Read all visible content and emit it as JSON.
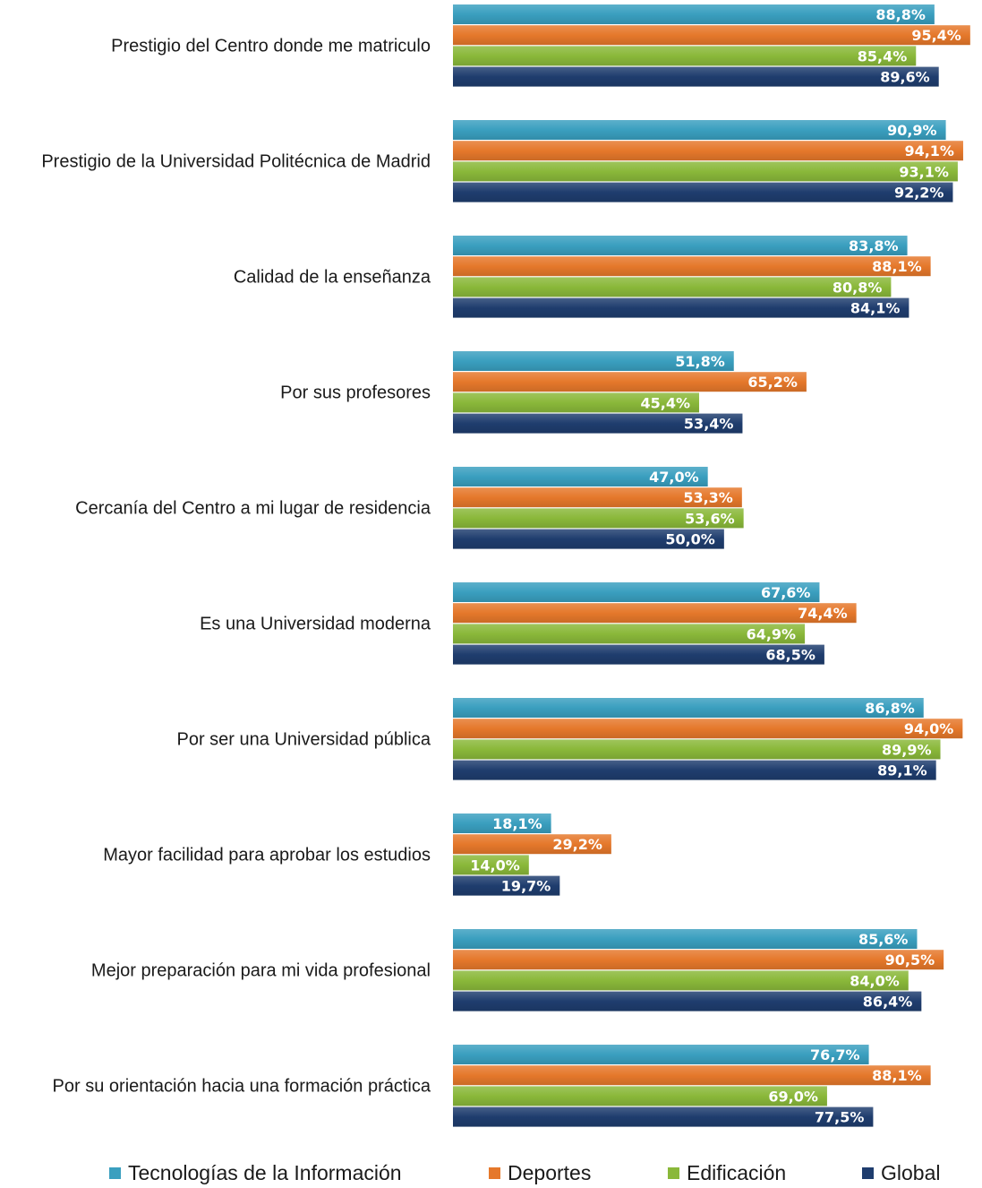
{
  "chart_data": {
    "type": "bar",
    "orientation": "horizontal",
    "title": "",
    "xlabel": "",
    "ylabel": "",
    "xlim": [
      0,
      100
    ],
    "grid": false,
    "legend_position": "bottom",
    "categories": [
      "Prestigio del Centro donde me matriculo",
      "Prestigio de la Universidad Politécnica de Madrid",
      "Calidad de la enseñanza",
      "Por sus profesores",
      "Cercanía del Centro a mi lugar de residencia",
      "Es una Universidad moderna",
      "Por ser una Universidad pública",
      "Mayor facilidad para aprobar los estudios",
      "Mejor preparación para mi vida profesional",
      "Por su orientación hacia una formación práctica"
    ],
    "series": [
      {
        "name": "Tecnologías de la Información",
        "color": "#3a9fbf",
        "values": [
          88.8,
          90.9,
          83.8,
          51.8,
          47.0,
          67.6,
          86.8,
          18.1,
          85.6,
          76.7
        ],
        "labels": [
          "88,8%",
          "90,9%",
          "83,8%",
          "51,8%",
          "47,0%",
          "67,6%",
          "86,8%",
          "18,1%",
          "85,6%",
          "76,7%"
        ]
      },
      {
        "name": "Deportes",
        "color": "#e5782b",
        "values": [
          95.4,
          94.1,
          88.1,
          65.2,
          53.3,
          74.4,
          94.0,
          29.2,
          90.5,
          88.1
        ],
        "labels": [
          "95,4%",
          "94,1%",
          "88,1%",
          "65,2%",
          "53,3%",
          "74,4%",
          "94,0%",
          "29,2%",
          "90,5%",
          "88,1%"
        ]
      },
      {
        "name": "Edificación",
        "color": "#8ab83a",
        "values": [
          85.4,
          93.1,
          80.8,
          45.4,
          53.6,
          64.9,
          89.9,
          14.0,
          84.0,
          69.0
        ],
        "labels": [
          "85,4%",
          "93,1%",
          "80,8%",
          "45,4%",
          "53,6%",
          "64,9%",
          "89,9%",
          "14,0%",
          "84,0%",
          "69,0%"
        ]
      },
      {
        "name": "Global",
        "color": "#1f3d6e",
        "values": [
          89.6,
          92.2,
          84.1,
          53.4,
          50.0,
          68.5,
          89.1,
          19.7,
          86.4,
          77.5
        ],
        "labels": [
          "89,6%",
          "92,2%",
          "84,1%",
          "53,4%",
          "50,0%",
          "68,5%",
          "89,1%",
          "19,7%",
          "86,4%",
          "77,5%"
        ]
      }
    ]
  }
}
